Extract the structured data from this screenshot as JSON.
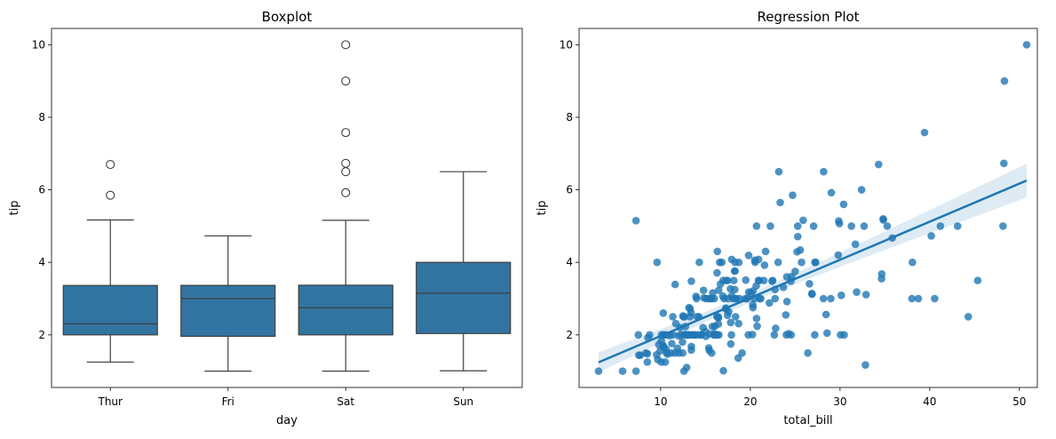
{
  "chart_data": [
    {
      "type": "box",
      "title": "Boxplot",
      "xlabel": "day",
      "ylabel": "tip",
      "categories": [
        "Thur",
        "Fri",
        "Sat",
        "Sun"
      ],
      "ylim": [
        0.55,
        10.45
      ],
      "yticks": [
        2,
        4,
        6,
        8,
        10
      ],
      "color": "#3274a1",
      "boxes": [
        {
          "q1": 2.0,
          "median": 2.305,
          "q3": 3.3625,
          "whisker_low": 1.25,
          "whisker_high": 5.17,
          "outliers": [
            6.7,
            5.85
          ]
        },
        {
          "q1": 1.96,
          "median": 3.0,
          "q3": 3.365,
          "whisker_low": 1.0,
          "whisker_high": 4.73,
          "outliers": []
        },
        {
          "q1": 2.0,
          "median": 2.75,
          "q3": 3.37,
          "whisker_low": 1.0,
          "whisker_high": 5.16,
          "outliers": [
            10.0,
            9.0,
            7.58,
            6.73,
            6.5,
            5.92
          ]
        },
        {
          "q1": 2.0375,
          "median": 3.15,
          "q3": 4.0,
          "whisker_low": 1.01,
          "whisker_high": 6.5,
          "outliers": []
        }
      ]
    },
    {
      "type": "scatter",
      "title": "Regression Plot",
      "xlabel": "total_bill",
      "ylabel": "tip",
      "xlim": [
        0.9,
        52.0
      ],
      "ylim": [
        0.55,
        10.45
      ],
      "xticks": [
        10,
        20,
        30,
        40,
        50
      ],
      "yticks": [
        2,
        4,
        6,
        8,
        10
      ],
      "color": "#1f77b4",
      "regression": "linear fit with 95% confidence band",
      "points": [
        [
          16.99,
          1.01
        ],
        [
          10.34,
          1.66
        ],
        [
          21.01,
          3.5
        ],
        [
          23.68,
          3.31
        ],
        [
          24.59,
          3.61
        ],
        [
          25.29,
          4.71
        ],
        [
          8.77,
          2.0
        ],
        [
          26.88,
          3.12
        ],
        [
          15.04,
          1.96
        ],
        [
          14.78,
          3.23
        ],
        [
          10.27,
          1.71
        ],
        [
          35.26,
          5.0
        ],
        [
          15.42,
          1.57
        ],
        [
          18.43,
          3.0
        ],
        [
          14.83,
          3.02
        ],
        [
          21.58,
          3.92
        ],
        [
          10.33,
          1.67
        ],
        [
          16.29,
          3.71
        ],
        [
          16.97,
          3.5
        ],
        [
          20.65,
          3.35
        ],
        [
          17.92,
          4.08
        ],
        [
          20.29,
          2.75
        ],
        [
          15.77,
          2.23
        ],
        [
          39.42,
          7.58
        ],
        [
          19.82,
          3.18
        ],
        [
          17.81,
          2.34
        ],
        [
          13.37,
          2.0
        ],
        [
          12.69,
          2.0
        ],
        [
          21.7,
          4.3
        ],
        [
          19.65,
          3.0
        ],
        [
          9.55,
          1.45
        ],
        [
          18.35,
          2.5
        ],
        [
          15.06,
          3.0
        ],
        [
          20.69,
          2.45
        ],
        [
          17.78,
          3.27
        ],
        [
          24.06,
          3.6
        ],
        [
          16.31,
          2.0
        ],
        [
          16.93,
          3.07
        ],
        [
          18.69,
          2.31
        ],
        [
          31.27,
          5.0
        ],
        [
          16.04,
          2.24
        ],
        [
          17.46,
          2.54
        ],
        [
          13.94,
          3.06
        ],
        [
          9.68,
          1.32
        ],
        [
          30.4,
          5.6
        ],
        [
          18.29,
          3.0
        ],
        [
          22.23,
          5.0
        ],
        [
          32.4,
          6.0
        ],
        [
          28.55,
          2.05
        ],
        [
          18.04,
          3.0
        ],
        [
          12.54,
          2.5
        ],
        [
          10.29,
          2.6
        ],
        [
          34.81,
          5.2
        ],
        [
          9.94,
          1.56
        ],
        [
          25.56,
          4.34
        ],
        [
          19.49,
          3.51
        ],
        [
          38.01,
          3.0
        ],
        [
          26.41,
          1.5
        ],
        [
          11.24,
          1.76
        ],
        [
          48.27,
          6.73
        ],
        [
          20.29,
          3.21
        ],
        [
          13.81,
          2.0
        ],
        [
          11.02,
          1.98
        ],
        [
          18.29,
          3.76
        ],
        [
          17.59,
          2.64
        ],
        [
          20.08,
          3.15
        ],
        [
          16.45,
          2.47
        ],
        [
          3.07,
          1.0
        ],
        [
          20.23,
          2.01
        ],
        [
          15.01,
          2.09
        ],
        [
          12.02,
          1.97
        ],
        [
          17.07,
          3.0
        ],
        [
          26.86,
          3.14
        ],
        [
          25.28,
          5.0
        ],
        [
          14.73,
          2.2
        ],
        [
          10.51,
          1.25
        ],
        [
          17.92,
          3.08
        ],
        [
          27.2,
          4.0
        ],
        [
          22.76,
          3.0
        ],
        [
          17.29,
          2.71
        ],
        [
          19.44,
          3.0
        ],
        [
          16.66,
          3.4
        ],
        [
          10.07,
          1.83
        ],
        [
          32.68,
          5.0
        ],
        [
          15.98,
          2.03
        ],
        [
          34.83,
          5.17
        ],
        [
          13.03,
          2.0
        ],
        [
          18.28,
          4.0
        ],
        [
          24.71,
          5.85
        ],
        [
          21.16,
          3.0
        ],
        [
          28.97,
          3.0
        ],
        [
          22.49,
          3.5
        ],
        [
          5.75,
          1.0
        ],
        [
          16.32,
          4.3
        ],
        [
          22.75,
          3.25
        ],
        [
          40.17,
          4.73
        ],
        [
          27.28,
          4.0
        ],
        [
          12.03,
          1.5
        ],
        [
          21.01,
          3.0
        ],
        [
          12.46,
          1.5
        ],
        [
          11.35,
          2.5
        ],
        [
          15.38,
          3.0
        ],
        [
          44.3,
          2.5
        ],
        [
          22.42,
          3.48
        ],
        [
          20.92,
          4.08
        ],
        [
          15.36,
          1.64
        ],
        [
          20.49,
          4.06
        ],
        [
          25.21,
          4.29
        ],
        [
          18.24,
          3.76
        ],
        [
          14.31,
          4.0
        ],
        [
          14.0,
          3.0
        ],
        [
          7.25,
          1.0
        ],
        [
          38.07,
          4.0
        ],
        [
          23.95,
          2.55
        ],
        [
          25.71,
          4.0
        ],
        [
          17.31,
          3.5
        ],
        [
          29.93,
          5.07
        ],
        [
          10.65,
          1.5
        ],
        [
          12.43,
          1.8
        ],
        [
          24.08,
          2.92
        ],
        [
          11.69,
          2.31
        ],
        [
          13.42,
          1.68
        ],
        [
          14.26,
          2.5
        ],
        [
          15.95,
          2.0
        ],
        [
          12.48,
          2.52
        ],
        [
          29.8,
          4.2
        ],
        [
          8.52,
          1.48
        ],
        [
          14.52,
          2.0
        ],
        [
          11.38,
          2.0
        ],
        [
          22.82,
          2.18
        ],
        [
          19.08,
          1.5
        ],
        [
          20.27,
          2.83
        ],
        [
          11.17,
          1.5
        ],
        [
          12.26,
          2.0
        ],
        [
          18.26,
          3.25
        ],
        [
          8.51,
          1.25
        ],
        [
          10.33,
          2.0
        ],
        [
          14.15,
          2.0
        ],
        [
          16.0,
          2.0
        ],
        [
          13.16,
          2.75
        ],
        [
          17.47,
          3.5
        ],
        [
          34.3,
          6.7
        ],
        [
          41.19,
          5.0
        ],
        [
          27.05,
          5.0
        ],
        [
          16.43,
          2.3
        ],
        [
          8.35,
          1.5
        ],
        [
          18.64,
          1.36
        ],
        [
          11.87,
          1.63
        ],
        [
          9.78,
          1.73
        ],
        [
          7.51,
          2.0
        ],
        [
          14.07,
          2.5
        ],
        [
          13.13,
          2.0
        ],
        [
          17.26,
          2.74
        ],
        [
          24.55,
          2.0
        ],
        [
          19.77,
          2.0
        ],
        [
          29.85,
          5.14
        ],
        [
          48.17,
          5.0
        ],
        [
          25.0,
          3.75
        ],
        [
          13.39,
          2.61
        ],
        [
          16.49,
          2.0
        ],
        [
          21.5,
          3.5
        ],
        [
          12.66,
          2.5
        ],
        [
          16.21,
          2.0
        ],
        [
          13.81,
          2.0
        ],
        [
          17.51,
          3.0
        ],
        [
          24.52,
          3.48
        ],
        [
          20.76,
          2.24
        ],
        [
          31.71,
          4.5
        ],
        [
          10.59,
          1.61
        ],
        [
          10.63,
          2.0
        ],
        [
          50.81,
          10.0
        ],
        [
          15.81,
          3.16
        ],
        [
          7.25,
          5.15
        ],
        [
          31.85,
          3.18
        ],
        [
          16.82,
          4.0
        ],
        [
          32.9,
          3.11
        ],
        [
          17.89,
          2.0
        ],
        [
          14.48,
          2.0
        ],
        [
          9.6,
          4.0
        ],
        [
          34.63,
          3.55
        ],
        [
          34.65,
          3.68
        ],
        [
          23.33,
          5.65
        ],
        [
          45.35,
          3.5
        ],
        [
          23.17,
          6.5
        ],
        [
          40.55,
          3.0
        ],
        [
          20.69,
          5.0
        ],
        [
          20.9,
          3.5
        ],
        [
          30.46,
          2.0
        ],
        [
          18.15,
          3.5
        ],
        [
          23.1,
          4.0
        ],
        [
          15.69,
          1.5
        ],
        [
          19.81,
          4.19
        ],
        [
          28.44,
          2.56
        ],
        [
          15.48,
          2.02
        ],
        [
          16.58,
          4.0
        ],
        [
          7.56,
          1.44
        ],
        [
          10.34,
          2.0
        ],
        [
          43.11,
          5.0
        ],
        [
          13.0,
          2.0
        ],
        [
          13.51,
          2.0
        ],
        [
          18.71,
          4.0
        ],
        [
          12.74,
          2.01
        ],
        [
          13.0,
          2.0
        ],
        [
          16.4,
          2.5
        ],
        [
          20.53,
          4.0
        ],
        [
          16.47,
          3.23
        ],
        [
          26.59,
          3.41
        ],
        [
          38.73,
          3.0
        ],
        [
          24.27,
          2.03
        ],
        [
          12.76,
          2.23
        ],
        [
          30.06,
          2.0
        ],
        [
          25.89,
          5.16
        ],
        [
          48.33,
          9.0
        ],
        [
          13.27,
          2.5
        ],
        [
          28.17,
          6.5
        ],
        [
          12.9,
          1.1
        ],
        [
          28.15,
          3.0
        ],
        [
          11.59,
          1.5
        ],
        [
          7.74,
          1.44
        ],
        [
          30.14,
          3.09
        ],
        [
          12.16,
          2.2
        ],
        [
          13.42,
          3.48
        ],
        [
          8.58,
          1.92
        ],
        [
          15.98,
          3.0
        ],
        [
          13.42,
          1.58
        ],
        [
          16.27,
          2.5
        ],
        [
          10.09,
          2.0
        ],
        [
          20.45,
          3.0
        ],
        [
          13.28,
          2.72
        ],
        [
          22.12,
          2.88
        ],
        [
          24.01,
          2.0
        ],
        [
          15.69,
          3.0
        ],
        [
          11.61,
          3.39
        ],
        [
          10.77,
          1.47
        ],
        [
          15.53,
          3.0
        ],
        [
          10.07,
          1.25
        ],
        [
          12.6,
          1.0
        ],
        [
          32.83,
          1.17
        ],
        [
          35.83,
          4.67
        ],
        [
          29.03,
          5.92
        ],
        [
          27.18,
          2.0
        ],
        [
          22.67,
          2.0
        ],
        [
          17.82,
          1.75
        ],
        [
          18.78,
          3.0
        ]
      ]
    }
  ]
}
